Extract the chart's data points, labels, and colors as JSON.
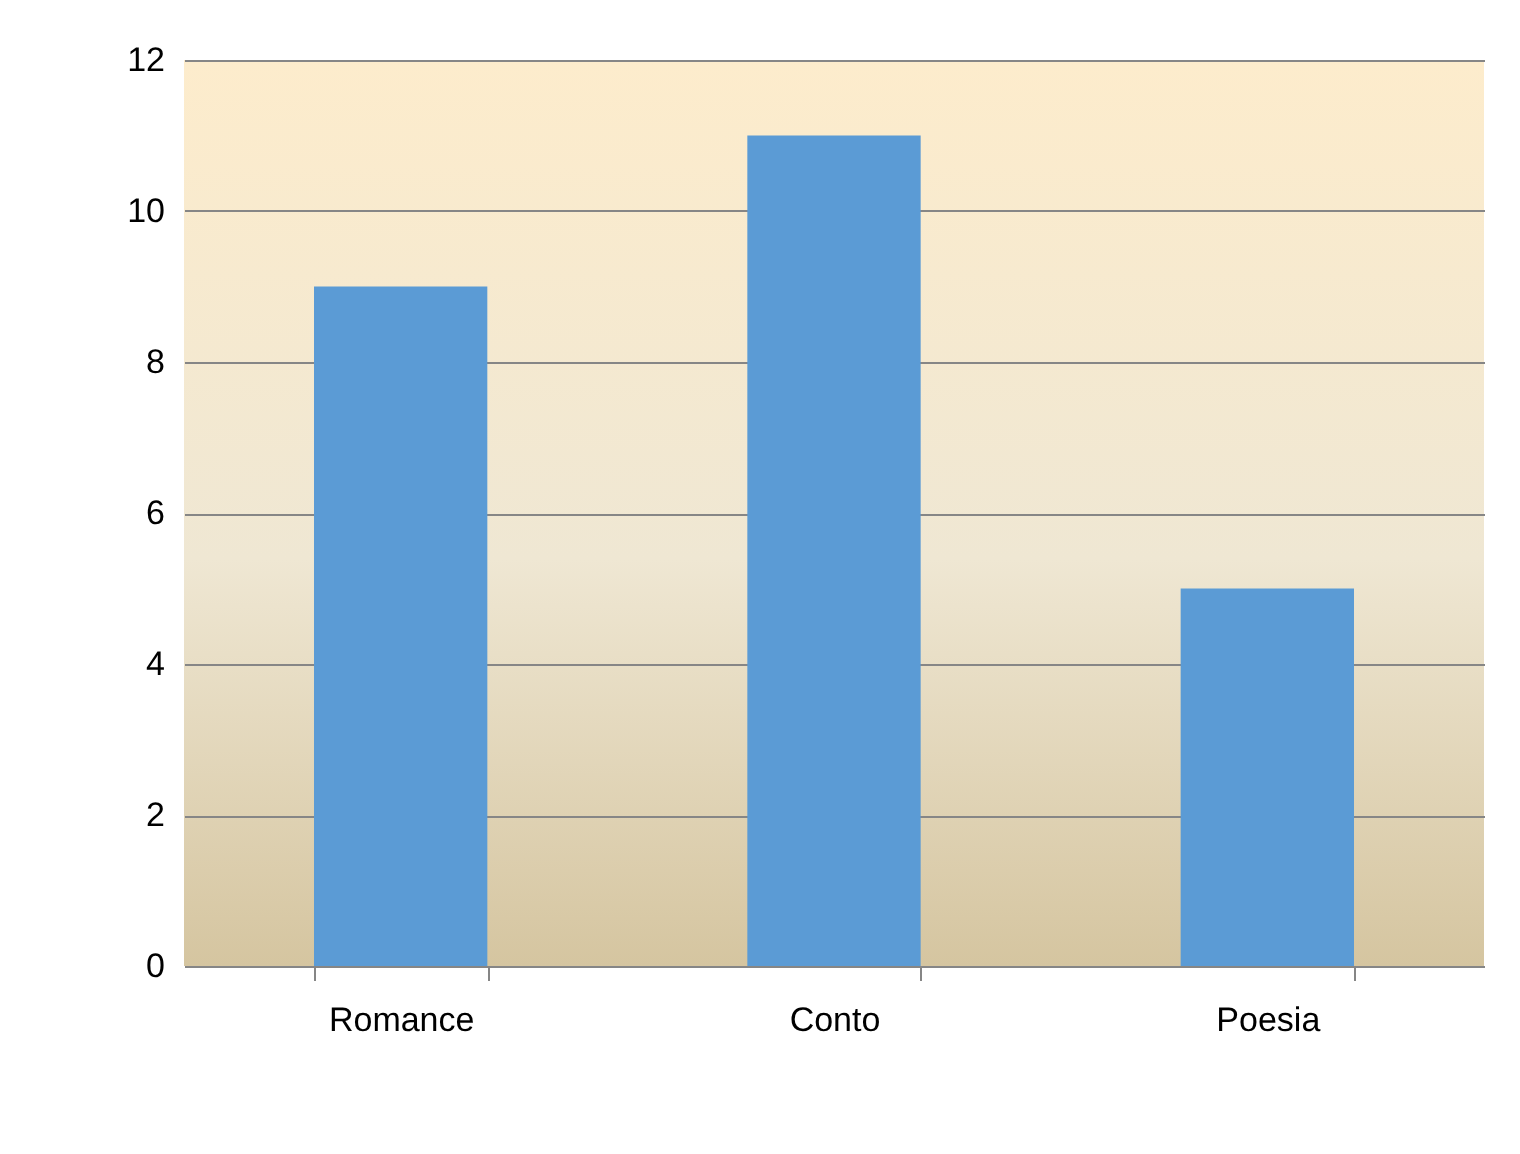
{
  "chart_data": {
    "type": "bar",
    "categories": [
      "Romance",
      "Conto",
      "Poesia"
    ],
    "values": [
      9,
      11,
      5
    ],
    "color": "#5b9bd5",
    "ylim": [
      0,
      12
    ],
    "yticks": [
      0,
      2,
      4,
      6,
      8,
      10,
      12
    ],
    "grid": "y"
  }
}
